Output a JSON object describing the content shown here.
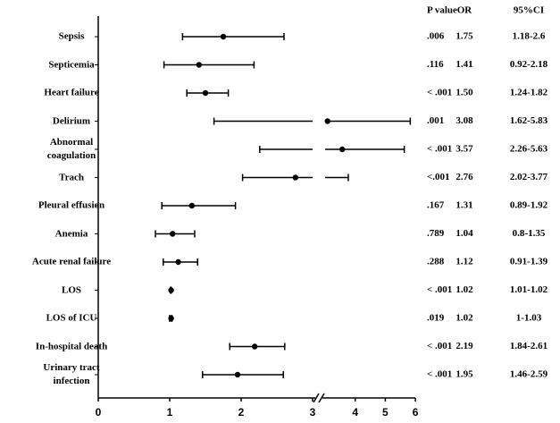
{
  "chart_data": {
    "type": "forest",
    "columns": [
      "P value",
      "OR",
      "95%CI"
    ],
    "categories": [
      "Sepsis",
      "Septicemia",
      "Heart failure",
      "Delirium",
      "Abnormal coagulation",
      "Trach",
      "Pleural effusion",
      "Anemia",
      "Acute renal failure",
      "LOS",
      "LOS of ICU",
      "In-hospital death",
      "Urinary tract infection"
    ],
    "p_values": [
      ".006",
      ".116",
      "< .001",
      ".001",
      "< .001",
      "<.001",
      ".167",
      ".789",
      ".288",
      "< .001",
      ".019",
      "< .001",
      "< .001"
    ],
    "values": [
      1.75,
      1.41,
      1.5,
      3.08,
      3.57,
      2.76,
      1.31,
      1.04,
      1.12,
      1.02,
      1.02,
      2.19,
      1.95
    ],
    "value_labels": [
      "1.75",
      "1.41",
      "1.50",
      "3.08",
      "3.57",
      "2.76",
      "1.31",
      "1.04",
      "1.12",
      "1.02",
      "1.02",
      "2.19",
      "1.95"
    ],
    "ci_low": [
      1.18,
      0.92,
      1.24,
      1.62,
      2.26,
      2.02,
      0.89,
      0.8,
      0.91,
      1.01,
      1,
      1.84,
      1.46
    ],
    "ci_high": [
      2.6,
      2.18,
      1.82,
      5.83,
      5.63,
      3.77,
      1.92,
      1.35,
      1.39,
      1.02,
      1.03,
      2.61,
      2.59
    ],
    "ci_labels": [
      "1.18-2.6",
      "0.92-2.18",
      "1.24-1.82",
      "1.62-5.83",
      "2.26-5.63",
      "2.02-3.77",
      "0.89-1.92",
      "0.8-1.35",
      "0.91-1.39",
      "1.01-1.02",
      "1-1.03",
      "1.84-2.61",
      "1.46-2.59"
    ],
    "xlim": [
      0,
      6
    ],
    "x_break": 3,
    "xticks": [
      0,
      1,
      2,
      3,
      4,
      5,
      6
    ],
    "color": "#000000"
  }
}
